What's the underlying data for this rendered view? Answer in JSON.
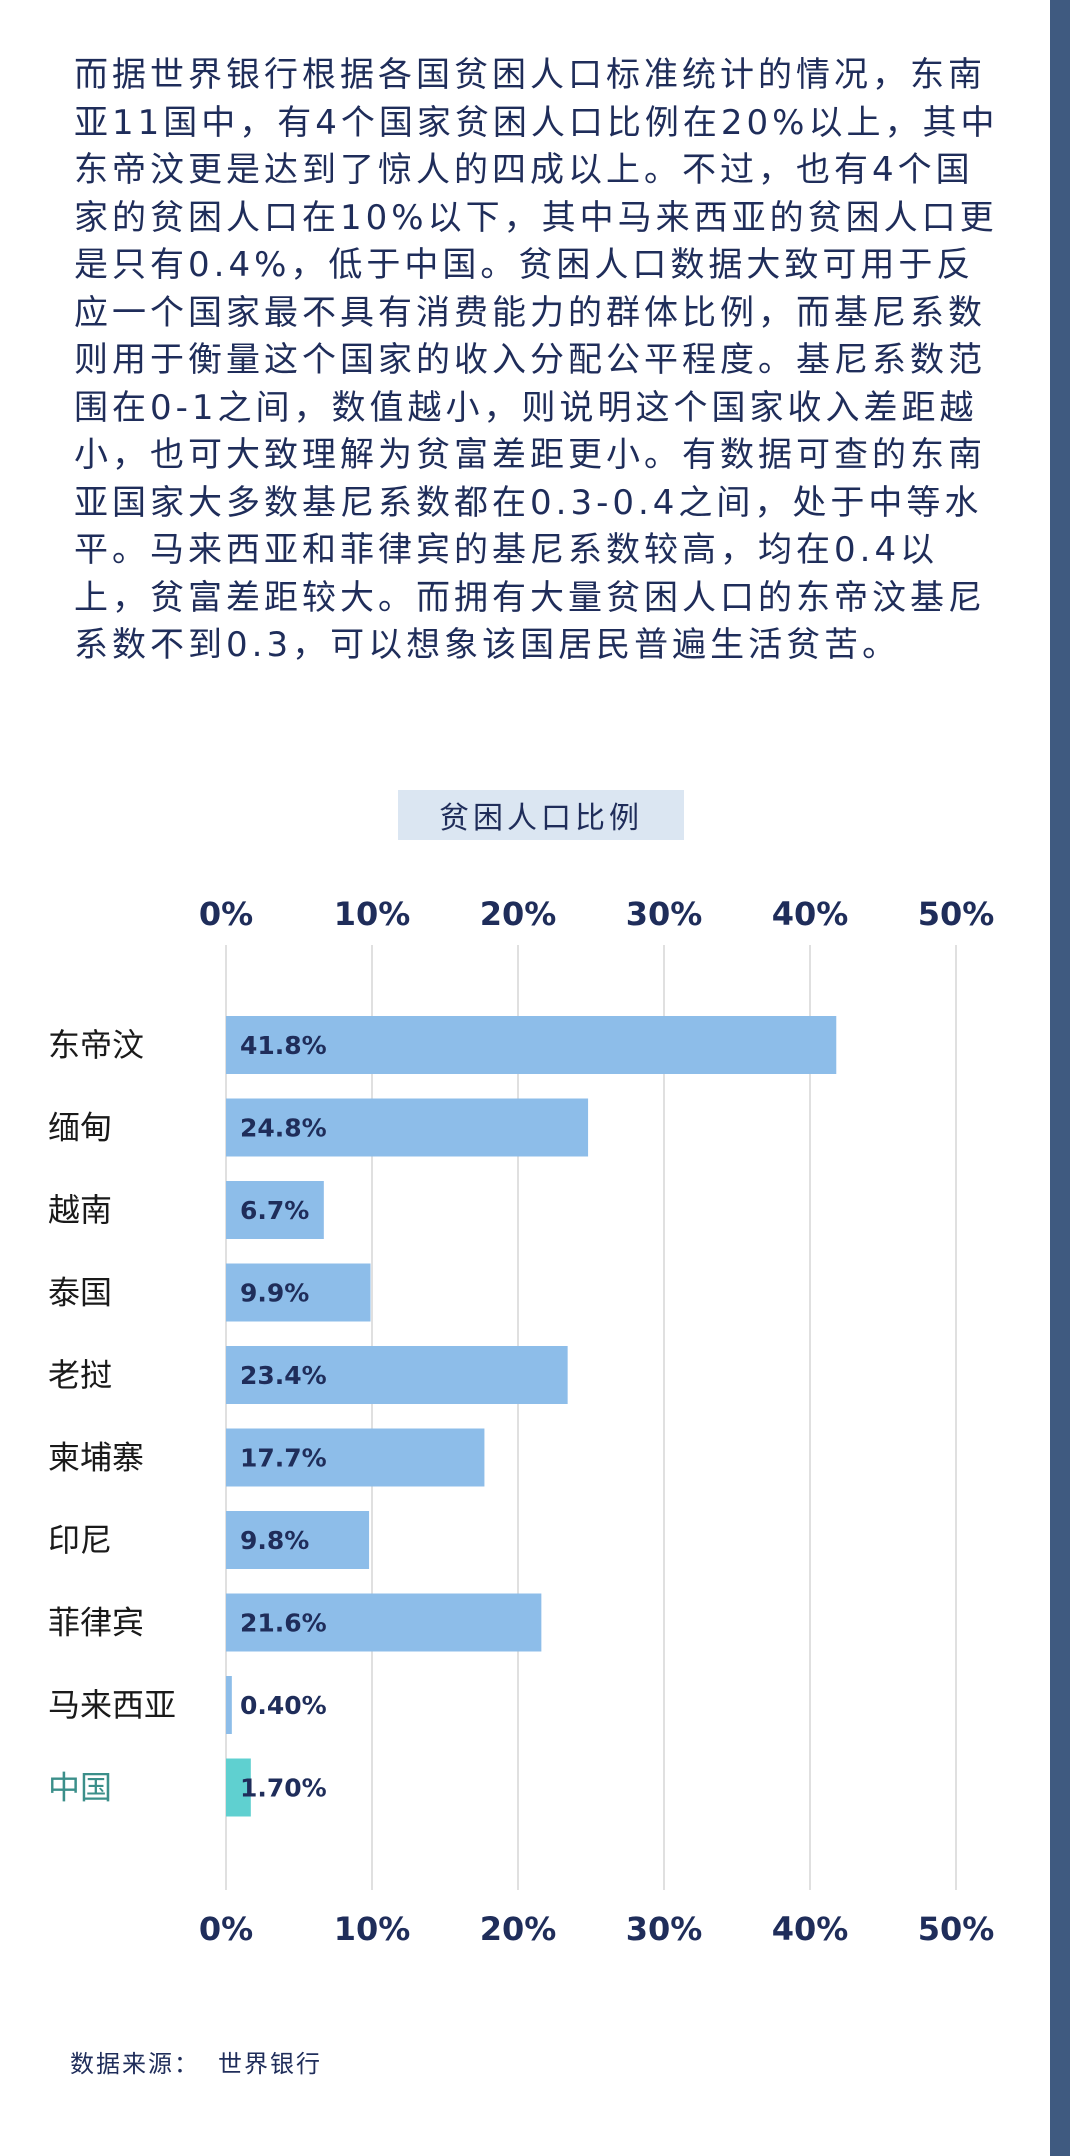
{
  "intro_text": "而据世界银行根据各国贫困人口标准统计的情况，东南亚11国中，有4个国家贫困人口比例在20%以上，其中东帝汶更是达到了惊人的四成以上。不过，也有4个国家的贫困人口在10%以下，其中马来西亚的贫困人口更是只有0.4%，低于中国。贫困人口数据大致可用于反应一个国家最不具有消费能力的群体比例，而基尼系数则用于衡量这个国家的收入分配公平程度。基尼系数范围在0-1之间，数值越小，则说明这个国家收入差距越小，也可大致理解为贫富差距更小。有数据可查的东南亚国家大多数基尼系数都在0.3-0.4之间，处于中等水平。马来西亚和菲律宾的基尼系数较高，均在0.4以上，贫富差距较大。而拥有大量贫困人口的东帝汶基尼系数不到0.3，可以想象该国居民普遍生活贫苦。",
  "chart_data": {
    "type": "bar",
    "orientation": "horizontal",
    "title": "贫困人口比例",
    "xlabel": "",
    "ylabel": "",
    "xlim": [
      0,
      50
    ],
    "x_ticks": [
      "0%",
      "10%",
      "20%",
      "30%",
      "40%",
      "50%"
    ],
    "tick_positions": [
      "top",
      "bottom"
    ],
    "grid": true,
    "categories": [
      "东帝汶",
      "缅甸",
      "越南",
      "泰国",
      "老挝",
      "柬埔寨",
      "印尼",
      "菲律宾",
      "马来西亚",
      "中国"
    ],
    "values": [
      41.8,
      24.8,
      6.7,
      9.9,
      23.4,
      17.7,
      9.8,
      21.6,
      0.4,
      1.7
    ],
    "data_labels": [
      "41.8%",
      "24.8%",
      "6.7%",
      "9.9%",
      "23.4%",
      "17.7%",
      "9.8%",
      "21.6%",
      "0.40%",
      "1.70%"
    ],
    "highlight_category": "中国",
    "colors": {
      "bar": "#8dbde9",
      "highlight_bar": "#5fd0d0",
      "highlight_label": "#3b8f8a",
      "text": "#1f2d5a",
      "grid": "#d6d6d6"
    }
  },
  "footer": {
    "source_label": "数据来源：",
    "source_value": "世界银行"
  }
}
